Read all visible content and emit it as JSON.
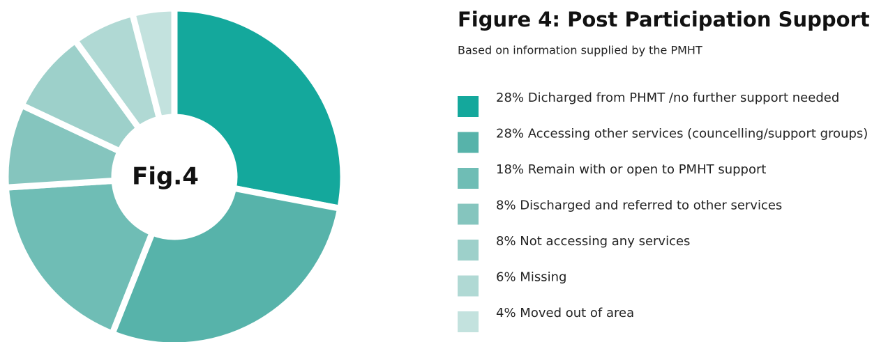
{
  "chart_data": {
    "type": "donut",
    "title": "Figure 4: Post Participation Support",
    "subtitle": "Based on information supplied by the PMHT",
    "center_label": "Fig.4",
    "categories": [
      "Dicharged from PHMT /no further support needed",
      "Accessing other services (councelling/support groups)",
      "Remain with or open to PMHT support",
      "Discharged and referred to other services",
      "Not accessing any services",
      "Missing",
      "Moved out of area"
    ],
    "values": [
      28,
      28,
      18,
      8,
      8,
      6,
      4
    ],
    "value_labels": [
      "28%",
      "28%",
      "18%",
      "8%",
      "8%",
      "6%",
      "4%"
    ],
    "colors": [
      "#14a89c",
      "#57b3aa",
      "#6fbdb5",
      "#85c5be",
      "#9dd0ca",
      "#b0d9d4",
      "#c3e2de"
    ],
    "legend": "right"
  }
}
